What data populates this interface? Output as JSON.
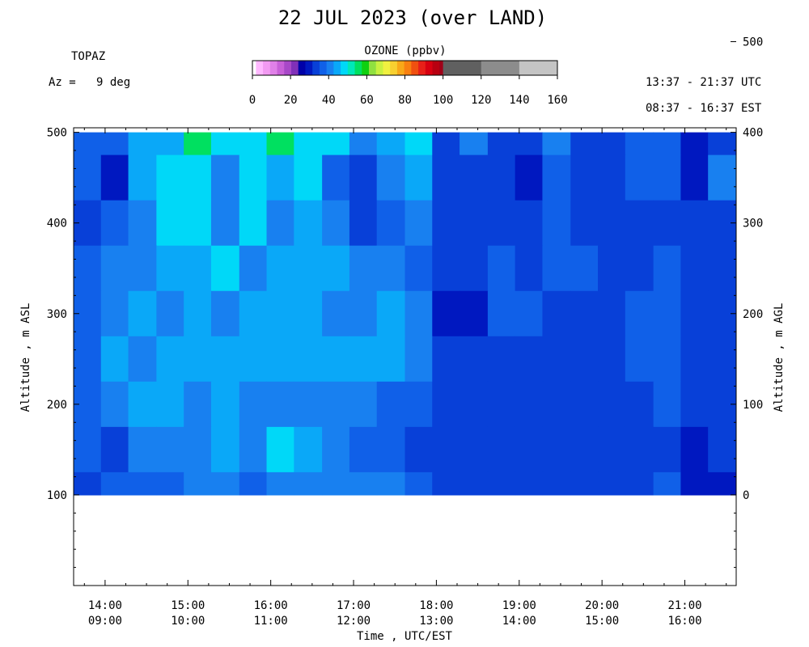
{
  "header": {
    "title": "22 JUL 2023 (over LAND)",
    "station": "TOPAZ",
    "azimuth": "Az =   9 deg",
    "utc_range": "13:37 - 21:37 UTC",
    "est_range": "08:37 - 16:37 EST"
  },
  "colorbar": {
    "title": "OZONE (ppbv)",
    "ticks": [
      "0",
      "20",
      "40",
      "60",
      "80",
      "100",
      "120",
      "140",
      "160"
    ],
    "tick_values": [
      0,
      20,
      40,
      60,
      80,
      100,
      120,
      140,
      160
    ],
    "fine_colors": [
      "#ffb8ff",
      "#f29af2",
      "#e080e8",
      "#c860d8",
      "#a848c8",
      "#8030b8",
      "#0000a8",
      "#0018c0",
      "#0840d8",
      "#1060e8",
      "#1880f0",
      "#0aa8f8",
      "#00d8f8",
      "#00e8b8",
      "#00e060",
      "#10d010",
      "#90e040",
      "#c8f040",
      "#f0f040",
      "#f8d030",
      "#f8a818",
      "#f88010",
      "#f05010",
      "#e82018",
      "#d80010",
      "#b80010",
      "#a00018"
    ],
    "coarse_colors": [
      "#606060",
      "#8c8c8c",
      "#c4c4c4"
    ]
  },
  "axes": {
    "ylabel_left": "Altitude , m ASL",
    "ylabel_right": "Altitude , m AGL",
    "xlabel": "Time , UTC/EST",
    "left_ticks": [
      "100",
      "200",
      "300",
      "400",
      "500"
    ],
    "right_ticks": [
      "0",
      "100",
      "200",
      "300",
      "400",
      "500"
    ],
    "x_ticks": [
      {
        "utc": "14:00",
        "est": "09:00"
      },
      {
        "utc": "15:00",
        "est": "10:00"
      },
      {
        "utc": "16:00",
        "est": "11:00"
      },
      {
        "utc": "17:00",
        "est": "12:00"
      },
      {
        "utc": "18:00",
        "est": "13:00"
      },
      {
        "utc": "19:00",
        "est": "14:00"
      },
      {
        "utc": "20:00",
        "est": "15:00"
      },
      {
        "utc": "21:00",
        "est": "16:00"
      }
    ]
  },
  "chart_data": {
    "type": "heatmap",
    "title": "22 JUL 2023 (over LAND)",
    "xlabel": "Time , UTC/EST",
    "ylabel": "Altitude , m ASL",
    "zlabel": "OZONE (ppbv)",
    "x_unit": "decimal hour UTC",
    "x_range": [
      13.62,
      21.62
    ],
    "ylim_asl": [
      0,
      505
    ],
    "data_altitude_range": [
      100,
      500
    ],
    "zlim": [
      0,
      160
    ],
    "y_levels_m": [
      500,
      450,
      400,
      350,
      300,
      250,
      200,
      150,
      100
    ],
    "time_bins_utc": [
      13.62,
      13.95,
      14.28,
      14.62,
      14.95,
      15.28,
      15.62,
      15.95,
      16.28,
      16.62,
      16.95,
      17.28,
      17.62,
      17.95,
      18.28,
      18.62,
      18.95,
      19.28,
      19.62,
      19.95,
      20.28,
      20.62,
      20.95,
      21.28
    ],
    "ozone_ppbv": [
      [
        36,
        36,
        44,
        44,
        52,
        48,
        48,
        54,
        48,
        48,
        40,
        44,
        48,
        32,
        40,
        32,
        32,
        40,
        32,
        32,
        36,
        36,
        28,
        32
      ],
      [
        36,
        28,
        44,
        48,
        48,
        40,
        48,
        44,
        48,
        36,
        32,
        40,
        44,
        32,
        32,
        32,
        28,
        36,
        32,
        32,
        36,
        36,
        28,
        40
      ],
      [
        32,
        36,
        40,
        48,
        48,
        40,
        48,
        40,
        44,
        40,
        32,
        36,
        40,
        32,
        32,
        32,
        32,
        36,
        32,
        32,
        32,
        32,
        32,
        32
      ],
      [
        36,
        40,
        40,
        44,
        44,
        48,
        40,
        44,
        44,
        44,
        40,
        40,
        36,
        32,
        32,
        36,
        32,
        36,
        36,
        32,
        32,
        36,
        32,
        32
      ],
      [
        36,
        40,
        44,
        40,
        44,
        40,
        44,
        44,
        44,
        40,
        40,
        44,
        40,
        28,
        28,
        36,
        36,
        32,
        32,
        32,
        36,
        36,
        32,
        32
      ],
      [
        36,
        44,
        40,
        44,
        44,
        44,
        44,
        44,
        44,
        44,
        44,
        44,
        40,
        32,
        32,
        32,
        32,
        32,
        32,
        32,
        36,
        36,
        32,
        32
      ],
      [
        36,
        40,
        44,
        44,
        40,
        44,
        40,
        40,
        40,
        40,
        40,
        36,
        36,
        32,
        32,
        32,
        32,
        32,
        32,
        32,
        32,
        36,
        32,
        32
      ],
      [
        36,
        32,
        40,
        40,
        40,
        44,
        40,
        48,
        44,
        40,
        36,
        36,
        32,
        32,
        32,
        32,
        32,
        32,
        32,
        32,
        32,
        32,
        28,
        32
      ],
      [
        32,
        36,
        36,
        36,
        40,
        40,
        36,
        40,
        40,
        40,
        40,
        40,
        36,
        32,
        32,
        32,
        32,
        32,
        32,
        32,
        32,
        36,
        28,
        28
      ]
    ],
    "below_data_fill": "white",
    "grid": false,
    "legend": "colorbar-top-center"
  }
}
